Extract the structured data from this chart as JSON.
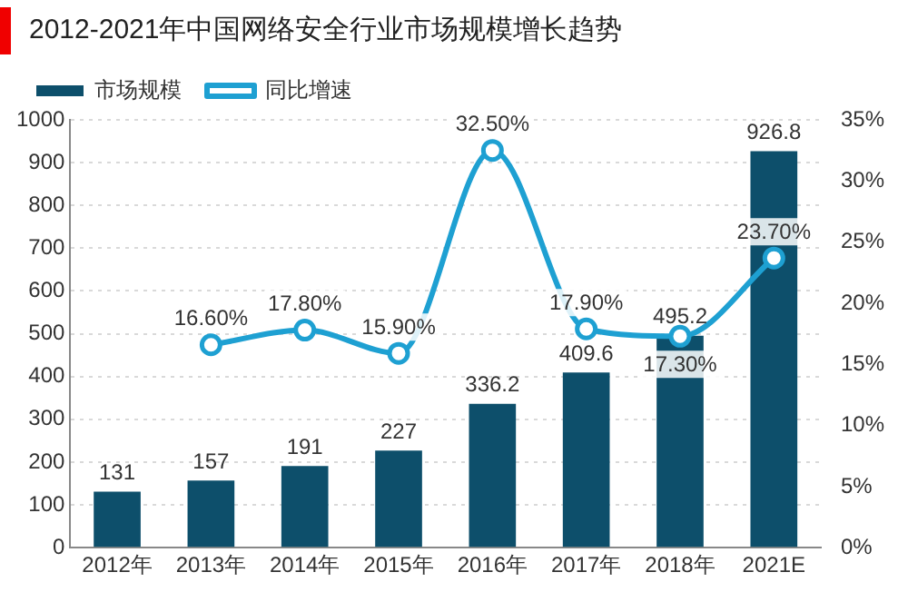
{
  "chart_data": {
    "type": "bar",
    "title": "2012-2021年中国网络安全行业市场规模增长趋势",
    "categories": [
      "2012年",
      "2013年",
      "2014年",
      "2015年",
      "2016年",
      "2017年",
      "2018年",
      "2021E"
    ],
    "series": [
      {
        "name": "市场规模",
        "color": "#0d4f6b",
        "values": [
          131,
          157,
          191,
          227,
          336.2,
          409.6,
          495.2,
          926.8
        ],
        "value_labels": [
          "131",
          "157",
          "191",
          "227",
          "336.2",
          "409.6",
          "495.2",
          "926.8"
        ]
      },
      {
        "name": "同比增速",
        "type": "line",
        "axis": "y2",
        "color": "#1ea0d2",
        "values": [
          null,
          16.6,
          17.8,
          15.9,
          32.5,
          17.9,
          17.3,
          23.7
        ],
        "value_labels": [
          null,
          "16.60%",
          "17.80%",
          "15.90%",
          "32.50%",
          "17.90%",
          "17.30%",
          "23.70%"
        ]
      }
    ],
    "ylim": [
      0,
      1000
    ],
    "yticks": [
      0,
      100,
      200,
      300,
      400,
      500,
      600,
      700,
      800,
      900,
      1000
    ],
    "y2lim": [
      0,
      35
    ],
    "y2ticks": [
      {
        "value": 0,
        "label": "0%"
      },
      {
        "value": 5,
        "label": "5%"
      },
      {
        "value": 10,
        "label": "10%"
      },
      {
        "value": 15,
        "label": "15%"
      },
      {
        "value": 20,
        "label": "20%"
      },
      {
        "value": 25,
        "label": "25%"
      },
      {
        "value": 30,
        "label": "30%"
      },
      {
        "value": 35,
        "label": "35%"
      }
    ],
    "grid": "y",
    "legend": "top",
    "marker": "circle",
    "line_style": "solid"
  }
}
